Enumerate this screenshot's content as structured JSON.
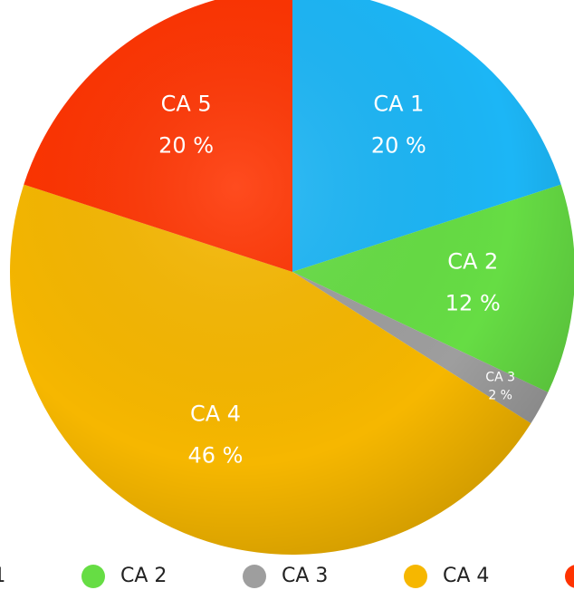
{
  "chart_data": {
    "type": "pie",
    "categories": [
      "CA 1",
      "CA 2",
      "CA 3",
      "CA 4",
      "CA 5"
    ],
    "values": [
      20,
      12,
      2,
      46,
      20
    ],
    "value_labels": [
      "20 %",
      "12 %",
      "2 %",
      "46 %",
      "20 %"
    ],
    "colors": [
      "#1cb6f6",
      "#66dd44",
      "#9e9e9e",
      "#f6b700",
      "#ff3300"
    ],
    "legend": "bottom"
  }
}
